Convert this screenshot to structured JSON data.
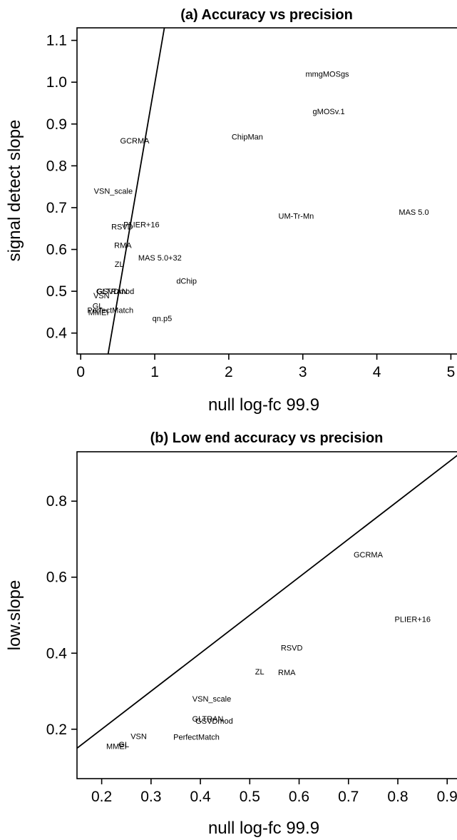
{
  "chart_data": [
    {
      "type": "scatter",
      "title": "(a)  Accuracy vs precision",
      "xlabel": "null log-fc 99.9",
      "ylabel": "signal detect slope",
      "xlim": [
        -0.05,
        5.15
      ],
      "ylim": [
        0.35,
        1.13
      ],
      "xticks": [
        "0",
        "1",
        "2",
        "3",
        "4",
        "5"
      ],
      "yticks": [
        "0.4",
        "0.5",
        "0.6",
        "0.7",
        "0.8",
        "0.9",
        "1.0",
        "1.1"
      ],
      "ref_line": [
        [
          0.37,
          0.35
        ],
        [
          1.13,
          1.13
        ]
      ],
      "grid": false,
      "points": [
        {
          "label": "mmgMOSgs",
          "x": 3.33,
          "y": 1.02
        },
        {
          "label": "gMOSv.1",
          "x": 3.35,
          "y": 0.93
        },
        {
          "label": "ChipMan",
          "x": 2.25,
          "y": 0.87
        },
        {
          "label": "GCRMA",
          "x": 0.73,
          "y": 0.86
        },
        {
          "label": "VSN_scale",
          "x": 0.44,
          "y": 0.74
        },
        {
          "label": "MAS 5.0",
          "x": 4.5,
          "y": 0.69
        },
        {
          "label": "UM-Tr-Mn",
          "x": 2.91,
          "y": 0.68
        },
        {
          "label": "PLIER+16",
          "x": 0.82,
          "y": 0.66
        },
        {
          "label": "RSVD",
          "x": 0.56,
          "y": 0.655
        },
        {
          "label": "RMA",
          "x": 0.57,
          "y": 0.61
        },
        {
          "label": "MAS 5.0+32",
          "x": 1.07,
          "y": 0.58
        },
        {
          "label": "ZL",
          "x": 0.52,
          "y": 0.565
        },
        {
          "label": "dChip",
          "x": 1.43,
          "y": 0.525
        },
        {
          "label": "GSVDmod",
          "x": 0.47,
          "y": 0.5
        },
        {
          "label": "GLTRAN",
          "x": 0.42,
          "y": 0.5
        },
        {
          "label": "VSN",
          "x": 0.28,
          "y": 0.49
        },
        {
          "label": "GL",
          "x": 0.23,
          "y": 0.465
        },
        {
          "label": "PerfectMatch",
          "x": 0.4,
          "y": 0.455
        },
        {
          "label": "MMEI",
          "x": 0.24,
          "y": 0.45
        },
        {
          "label": "qn.p5",
          "x": 1.1,
          "y": 0.435
        }
      ]
    },
    {
      "type": "scatter",
      "title": "(b)  Low end accuracy vs precision",
      "xlabel": "null log-fc 99.9",
      "ylabel": "low.slope",
      "xlim": [
        0.15,
        0.93
      ],
      "ylim": [
        0.07,
        0.93
      ],
      "xticks": [
        "0.2",
        "0.3",
        "0.4",
        "0.5",
        "0.6",
        "0.7",
        "0.8",
        "0.9"
      ],
      "yticks": [
        "0.2",
        "0.4",
        "0.6",
        "0.8"
      ],
      "ref_line": [
        [
          0.15,
          0.15
        ],
        [
          0.93,
          0.93
        ]
      ],
      "grid": false,
      "points": [
        {
          "label": "GCRMA",
          "x": 0.74,
          "y": 0.66
        },
        {
          "label": "PLIER+16",
          "x": 0.83,
          "y": 0.49
        },
        {
          "label": "RSVD",
          "x": 0.585,
          "y": 0.415
        },
        {
          "label": "RMA",
          "x": 0.575,
          "y": 0.35
        },
        {
          "label": "ZL",
          "x": 0.52,
          "y": 0.352
        },
        {
          "label": "VSN_scale",
          "x": 0.423,
          "y": 0.28
        },
        {
          "label": "GLTRAN",
          "x": 0.415,
          "y": 0.228
        },
        {
          "label": "GSVDmod",
          "x": 0.428,
          "y": 0.222
        },
        {
          "label": "PerfectMatch",
          "x": 0.392,
          "y": 0.18
        },
        {
          "label": "VSN",
          "x": 0.275,
          "y": 0.182
        },
        {
          "label": "GL",
          "x": 0.245,
          "y": 0.16
        },
        {
          "label": "MMEI",
          "x": 0.23,
          "y": 0.155
        }
      ]
    }
  ]
}
